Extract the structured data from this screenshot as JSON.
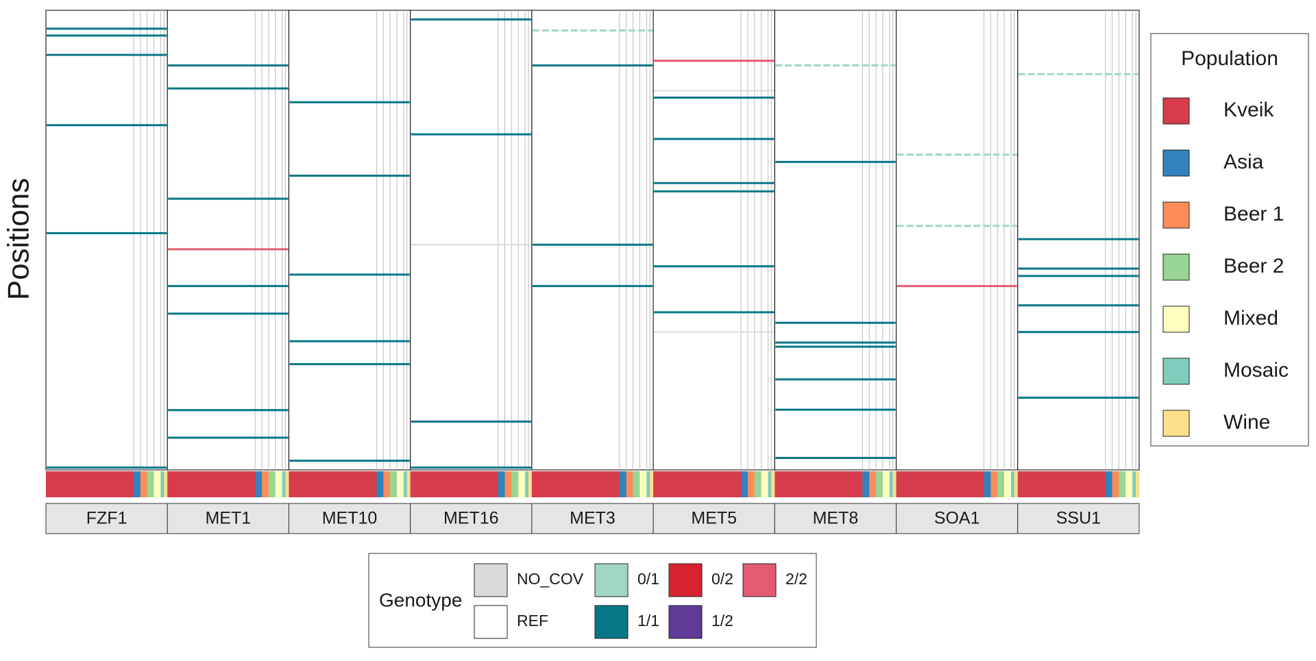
{
  "chart_data": {
    "type": "genotype-heatmap",
    "y_label": "Positions",
    "ylim": [
      0,
      100
    ],
    "y_reversed": true,
    "genotypes": [
      {
        "name": "NO_COV",
        "color": "#d9d9d9"
      },
      {
        "name": "REF",
        "color": "#ffffff"
      },
      {
        "name": "0/1",
        "color": "#a1d5c4"
      },
      {
        "name": "1/1",
        "color": "#077786"
      },
      {
        "name": "0/2",
        "color": "#d7232f"
      },
      {
        "name": "1/2",
        "color": "#5f3a96"
      },
      {
        "name": "2/2",
        "color": "#e35b70"
      }
    ],
    "genotype_legend_title": "Genotype",
    "population_legend_title": "Population",
    "populations": [
      {
        "name": "Kveik",
        "color": "#d63c4c"
      },
      {
        "name": "Asia",
        "color": "#3182bd"
      },
      {
        "name": "Beer 1",
        "color": "#fc8d59"
      },
      {
        "name": "Beer 2",
        "color": "#99d594"
      },
      {
        "name": "Mixed",
        "color": "#ffffbf"
      },
      {
        "name": "Mosaic",
        "color": "#7fcdbb"
      },
      {
        "name": "Wine",
        "color": "#fedf8b"
      }
    ],
    "population_counts": [
      26,
      2,
      2,
      2,
      2,
      1,
      1
    ],
    "facets": [
      {
        "name": "FZF1",
        "rows": [
          {
            "y": 4,
            "genotype": "1/1"
          },
          {
            "y": 5.5,
            "genotype": "1/1"
          },
          {
            "y": 9.7,
            "genotype": "1/1"
          },
          {
            "y": 25,
            "genotype": "1/1"
          },
          {
            "y": 48.5,
            "genotype": "1/1"
          },
          {
            "y": 99.5,
            "genotype": "1/1"
          }
        ]
      },
      {
        "name": "MET1",
        "rows": [
          {
            "y": 12,
            "genotype": "1/1"
          },
          {
            "y": 17,
            "genotype": "1/1"
          },
          {
            "y": 41,
            "genotype": "1/1"
          },
          {
            "y": 52,
            "genotype": "2/2"
          },
          {
            "y": 60,
            "genotype": "1/1"
          },
          {
            "y": 66,
            "genotype": "1/1"
          },
          {
            "y": 87,
            "genotype": "1/1"
          },
          {
            "y": 93,
            "genotype": "1/1"
          }
        ]
      },
      {
        "name": "MET10",
        "rows": [
          {
            "y": 20,
            "genotype": "1/1"
          },
          {
            "y": 36,
            "genotype": "1/1"
          },
          {
            "y": 57.5,
            "genotype": "1/1"
          },
          {
            "y": 72,
            "genotype": "1/1"
          },
          {
            "y": 77,
            "genotype": "1/1"
          },
          {
            "y": 98,
            "genotype": "1/1"
          }
        ]
      },
      {
        "name": "MET16",
        "rows": [
          {
            "y": 2,
            "genotype": "1/1"
          },
          {
            "y": 27,
            "genotype": "1/1"
          },
          {
            "y": 51,
            "genotype": "NO_COV"
          },
          {
            "y": 89.5,
            "genotype": "1/1"
          },
          {
            "y": 99.5,
            "genotype": "1/1"
          }
        ]
      },
      {
        "name": "MET3",
        "rows": [
          {
            "y": 4.4,
            "genotype": "0/1"
          },
          {
            "y": 12,
            "genotype": "1/1"
          },
          {
            "y": 51,
            "genotype": "1/1"
          },
          {
            "y": 60,
            "genotype": "1/1"
          }
        ]
      },
      {
        "name": "MET5",
        "rows": [
          {
            "y": 11,
            "genotype": "2/2"
          },
          {
            "y": 17.5,
            "genotype": "NO_COV"
          },
          {
            "y": 19,
            "genotype": "1/1"
          },
          {
            "y": 28,
            "genotype": "1/1"
          },
          {
            "y": 37.6,
            "genotype": "1/1"
          },
          {
            "y": 39.4,
            "genotype": "1/1"
          },
          {
            "y": 55.7,
            "genotype": "1/1"
          },
          {
            "y": 65.7,
            "genotype": "1/1"
          },
          {
            "y": 70,
            "genotype": "NO_COV"
          }
        ]
      },
      {
        "name": "MET8",
        "rows": [
          {
            "y": 12,
            "genotype": "0/1"
          },
          {
            "y": 33,
            "genotype": "1/1"
          },
          {
            "y": 68,
            "genotype": "1/1"
          },
          {
            "y": 72.3,
            "genotype": "1/1"
          },
          {
            "y": 73.2,
            "genotype": "1/1"
          },
          {
            "y": 80.3,
            "genotype": "1/1"
          },
          {
            "y": 86.9,
            "genotype": "1/1"
          },
          {
            "y": 97.4,
            "genotype": "1/1"
          }
        ]
      },
      {
        "name": "SOA1",
        "rows": [
          {
            "y": 31.4,
            "genotype": "0/1"
          },
          {
            "y": 46.9,
            "genotype": "0/1"
          },
          {
            "y": 60,
            "genotype": "2/2"
          }
        ]
      },
      {
        "name": "SSU1",
        "rows": [
          {
            "y": 13.9,
            "genotype": "0/1"
          },
          {
            "y": 49.8,
            "genotype": "1/1"
          },
          {
            "y": 56.2,
            "genotype": "1/1"
          },
          {
            "y": 57.8,
            "genotype": "1/1"
          },
          {
            "y": 64.2,
            "genotype": "1/1"
          },
          {
            "y": 70,
            "genotype": "1/1"
          },
          {
            "y": 84.3,
            "genotype": "1/1"
          }
        ]
      }
    ]
  }
}
